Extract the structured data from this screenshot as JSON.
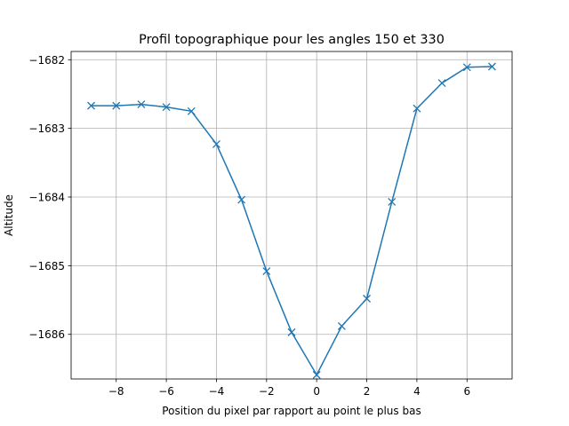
{
  "chart_data": {
    "type": "line",
    "title": "Profil topographique pour les angles 150 et 330",
    "xlabel": "Position du pixel par rapport au point le plus bas",
    "ylabel": "Altitude",
    "xlim": [
      -9.8,
      7.8
    ],
    "ylim": [
      -1686.65,
      -1681.88
    ],
    "xticks": [
      -8,
      -6,
      -4,
      -2,
      0,
      2,
      4,
      6
    ],
    "xtick_labels": [
      "−8",
      "−6",
      "−4",
      "−2",
      "0",
      "2",
      "4",
      "6"
    ],
    "yticks": [
      -1682,
      -1683,
      -1684,
      -1685,
      -1686
    ],
    "ytick_labels": [
      "−1682",
      "−1683",
      "−1684",
      "−1685",
      "−1686"
    ],
    "grid": true,
    "marker": "x",
    "line_color": "#1f77b4",
    "series": [
      {
        "x": [
          -9,
          -8,
          -7,
          -6,
          -5,
          -4,
          -3,
          -2,
          -1,
          0,
          1,
          2,
          3,
          4,
          5,
          6,
          7
        ],
        "y": [
          -1682.67,
          -1682.67,
          -1682.65,
          -1682.69,
          -1682.75,
          -1683.23,
          -1684.04,
          -1685.08,
          -1685.97,
          -1686.59,
          -1685.88,
          -1685.48,
          -1684.07,
          -1682.71,
          -1682.34,
          -1682.11,
          -1682.1
        ]
      }
    ]
  }
}
